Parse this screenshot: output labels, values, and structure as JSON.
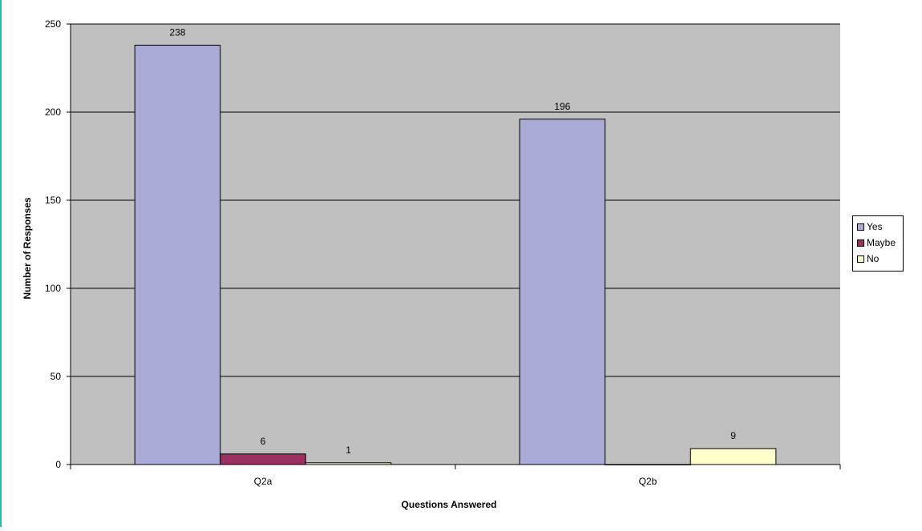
{
  "chart_data": {
    "type": "bar",
    "categories": [
      "Q2a",
      "Q2b"
    ],
    "series": [
      {
        "name": "Yes",
        "values": [
          238,
          196
        ],
        "color": "#aaaad6"
      },
      {
        "name": "Maybe",
        "values": [
          6,
          0
        ],
        "color": "#9b3060"
      },
      {
        "name": "No",
        "values": [
          1,
          9
        ],
        "color": "#ffffcc"
      }
    ],
    "data_labels": [
      [
        "238",
        "196"
      ],
      [
        "6",
        ""
      ],
      [
        "1",
        "9"
      ]
    ],
    "title": "",
    "xlabel": "Questions Answered",
    "ylabel": "Number of Responses",
    "ylim": [
      0,
      250
    ],
    "yticks": [
      0,
      50,
      100,
      150,
      200,
      250
    ],
    "grid": true,
    "plot_background": "#c0c0c0",
    "legend_position": "right"
  }
}
